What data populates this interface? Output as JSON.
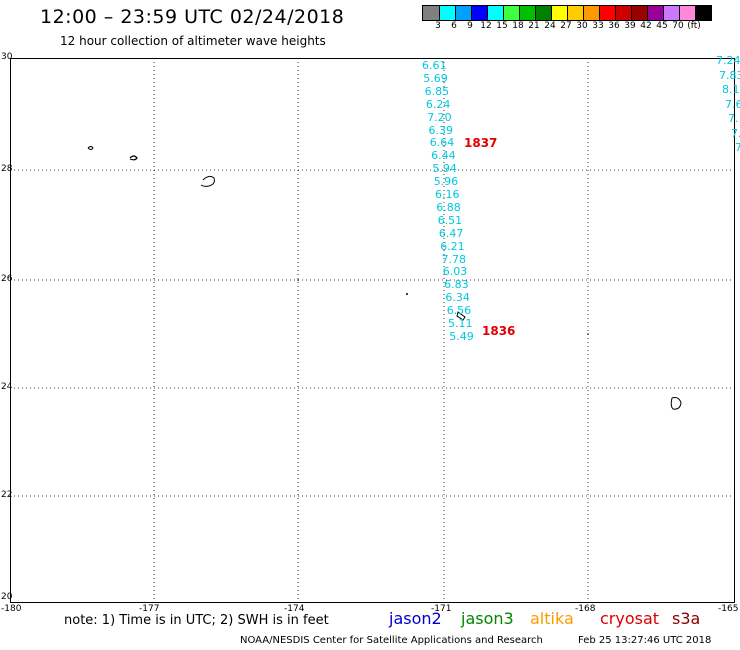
{
  "header": {
    "title": "12:00 – 23:59 UTC 02/24/2018",
    "subtitle": "12 hour collection of altimeter wave heights"
  },
  "colorbar": {
    "colors": [
      "#808080",
      "#00ffff",
      "#00a0ff",
      "#0000ff",
      "#00ffff",
      "#40ff40",
      "#00c000",
      "#008000",
      "#ffff00",
      "#ffcc00",
      "#ff9900",
      "#ff0000",
      "#cc0000",
      "#990000",
      "#990099",
      "#cc77ff",
      "#ff88dd",
      "#000000"
    ],
    "labels": [
      "3",
      "6",
      "9",
      "12",
      "15",
      "18",
      "21",
      "24",
      "27",
      "30",
      "33",
      "36",
      "39",
      "42",
      "45",
      "70",
      "(ft)"
    ]
  },
  "axes": {
    "lat_labels": [
      "30",
      "28",
      "26",
      "24",
      "22",
      "20"
    ],
    "lon_labels": [
      "-180",
      "-177",
      "-174",
      "-171",
      "-168",
      "-165"
    ]
  },
  "track_1837": {
    "label": "1837",
    "heights": [
      "6.61",
      "5.69",
      "6.85",
      "6.24",
      "7.20",
      "6.39",
      "6.64",
      "6.44",
      "5.94",
      "5.96",
      "6.16",
      "6.88",
      "6.51",
      "6.47",
      "6.21",
      "7.78",
      "6.03",
      "6.83",
      "6.34",
      "6.56",
      "5.11",
      "5.49"
    ]
  },
  "track_1836": {
    "label": "1836"
  },
  "track_edge": {
    "heights": [
      "7.24",
      "7.83",
      "8.1",
      "7.6",
      "7.",
      "7.",
      "7"
    ]
  },
  "footer": {
    "note": "note: 1) Time is in UTC; 2) SWH is in feet",
    "satellites": [
      {
        "name": "jason2",
        "color": "#0000cc"
      },
      {
        "name": "jason3",
        "color": "#008800"
      },
      {
        "name": "altika",
        "color": "#ff9900"
      },
      {
        "name": "cryosat",
        "color": "#dd0000"
      },
      {
        "name": "s3a",
        "color": "#880000"
      }
    ],
    "credit": "NOAA/NESDIS Center for Satellite Applications and Research",
    "timestamp": "Feb 25 13:27:46 UTC 2018"
  }
}
